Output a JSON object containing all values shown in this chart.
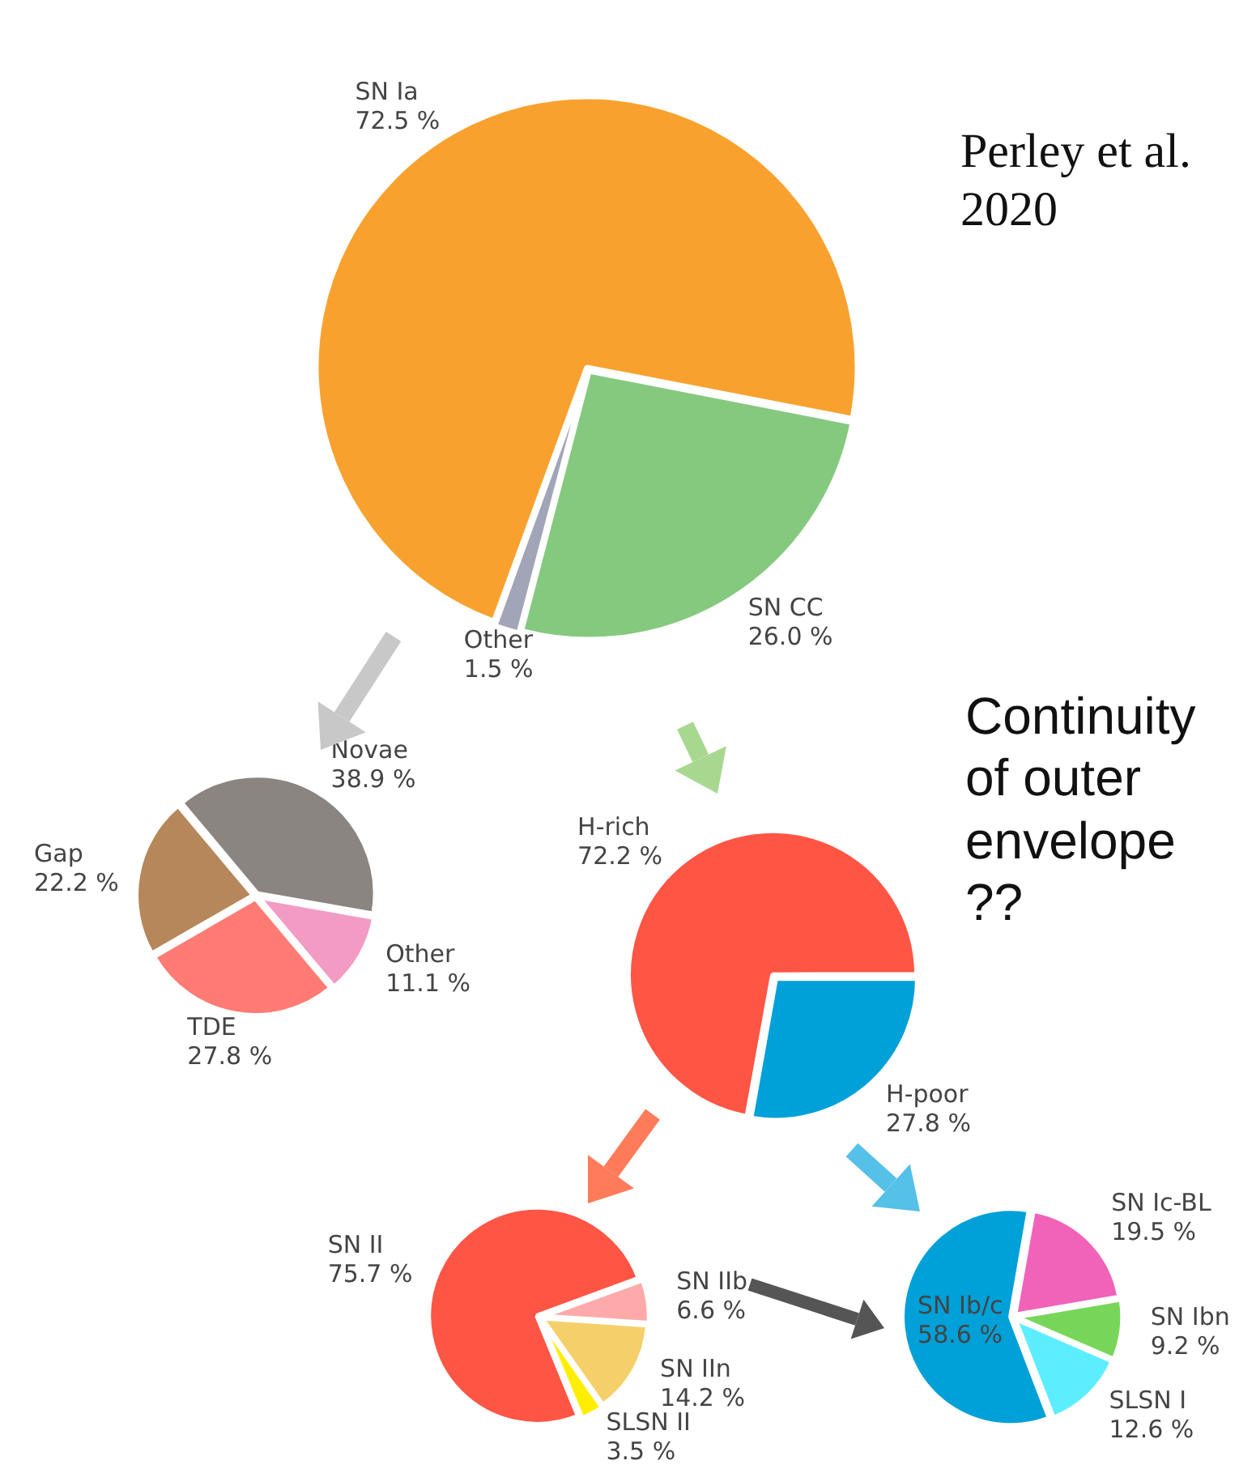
{
  "chart_data": [
    {
      "type": "pie",
      "categories": [
        "SN Ia",
        "SN CC",
        "Other"
      ],
      "values": [
        72.5,
        26.0,
        1.5
      ],
      "value_labels": [
        "72.5 %",
        "26.0 %",
        "1.5 %"
      ],
      "colors": [
        "#f9a12e",
        "#85c97f",
        "#a2a5b8"
      ],
      "annotations": [
        "Perley et al. 2020"
      ],
      "legend": false
    },
    {
      "type": "pie",
      "categories": [
        "Novae",
        "Other",
        "TDE",
        "Gap"
      ],
      "values": [
        38.9,
        11.1,
        27.8,
        22.2
      ],
      "value_labels": [
        "38.9 %",
        "11.1 %",
        "27.8 %",
        "22.2 %"
      ],
      "colors": [
        "#8a8580",
        "#f29bc5",
        "#ff7b73",
        "#b5875a"
      ],
      "legend": false
    },
    {
      "type": "pie",
      "categories": [
        "H-poor",
        "H-rich"
      ],
      "values": [
        27.8,
        72.2
      ],
      "value_labels": [
        "27.8 %",
        "72.2 %"
      ],
      "colors": [
        "#00a0d8",
        "#ff5544"
      ],
      "annotations": [
        "Continuity of outer envelope ??"
      ],
      "legend": false
    },
    {
      "type": "pie",
      "categories": [
        "SN IIb",
        "SN IIn",
        "SLSN II",
        "SN II"
      ],
      "values": [
        6.6,
        14.2,
        3.5,
        75.7
      ],
      "value_labels": [
        "6.6 %",
        "14.2 %",
        "3.5 %",
        "75.7 %"
      ],
      "colors": [
        "#ffaaaa",
        "#f5d06a",
        "#ffee00",
        "#ff5544"
      ],
      "legend": false
    },
    {
      "type": "pie",
      "categories": [
        "SN Ic-BL",
        "SN Ibn",
        "SLSN I",
        "SN Ib/c"
      ],
      "values": [
        19.5,
        9.2,
        12.6,
        58.6
      ],
      "value_labels": [
        "19.5 %",
        "9.2 %",
        "12.6 %",
        "58.6 %"
      ],
      "colors": [
        "#f063b8",
        "#77d65a",
        "#5ceeff",
        "#00a0d8"
      ],
      "legend": false
    }
  ]
}
